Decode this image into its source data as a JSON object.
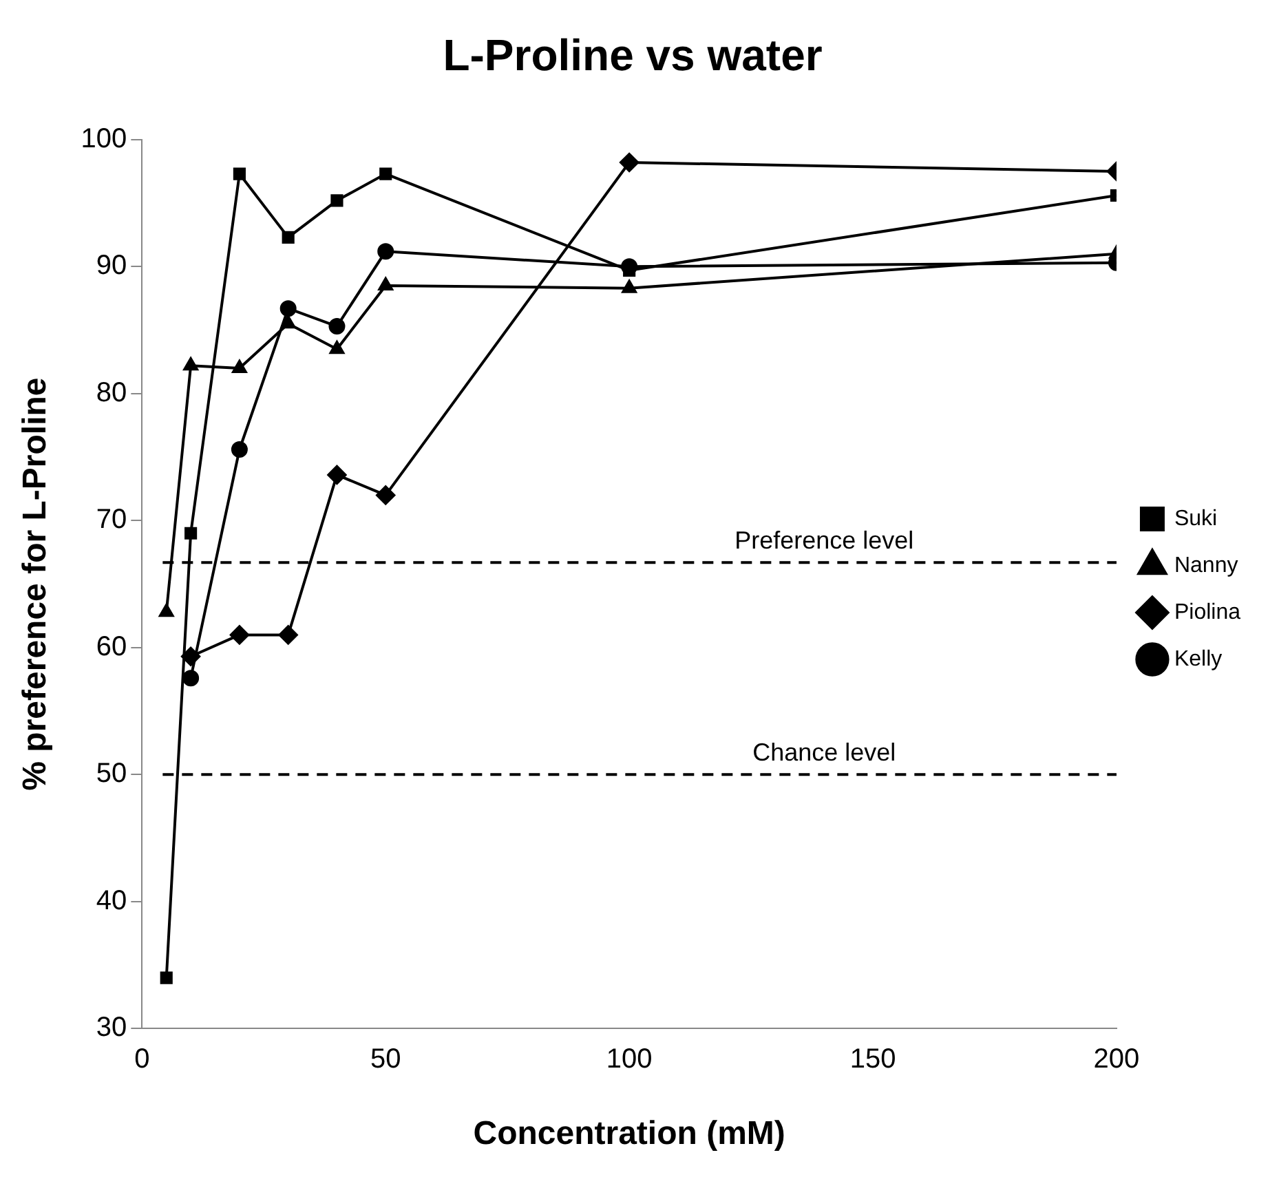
{
  "chart_data": {
    "type": "line",
    "title": "L-Proline vs water",
    "xlabel": "Concentration (mM)",
    "ylabel": "% preference for L-Proline",
    "xlim": [
      0,
      200
    ],
    "xticks": [
      0,
      50,
      100,
      150,
      200
    ],
    "ylim": [
      30,
      100
    ],
    "yticks": [
      30,
      40,
      50,
      60,
      70,
      80,
      90,
      100
    ],
    "grid": false,
    "legend": "right",
    "line_style": "solid",
    "series": [
      {
        "name": "Suki",
        "color": "#000000",
        "marker": "square",
        "x": [
          5,
          10,
          20,
          30,
          40,
          50,
          100,
          200
        ],
        "values": [
          34,
          69,
          97.3,
          92.3,
          95.2,
          97.3,
          89.7,
          95.6
        ]
      },
      {
        "name": "Nanny",
        "color": "#000000",
        "marker": "triangle",
        "x": [
          5,
          10,
          20,
          30,
          40,
          50,
          100,
          200
        ],
        "values": [
          62.8,
          82.2,
          82,
          85.5,
          83.5,
          88.5,
          88.3,
          91
        ]
      },
      {
        "name": "Piolina",
        "color": "#000000",
        "marker": "diamond",
        "x": [
          10,
          20,
          30,
          40,
          50,
          100,
          200
        ],
        "values": [
          59.3,
          61,
          61,
          73.6,
          72,
          98.2,
          97.5
        ]
      },
      {
        "name": "Kelly",
        "color": "#000000",
        "marker": "circle",
        "x": [
          10,
          20,
          30,
          40,
          50,
          100,
          200
        ],
        "values": [
          57.6,
          75.6,
          86.7,
          85.3,
          91.2,
          90,
          90.3
        ]
      }
    ],
    "ref_lines": [
      {
        "axis": "y",
        "value": 66.7,
        "label": "Preference level",
        "line_style": "dashed",
        "color": "#000000"
      },
      {
        "axis": "y",
        "value": 50,
        "label": "Chance level",
        "line_style": "dashed",
        "color": "#000000"
      }
    ]
  }
}
